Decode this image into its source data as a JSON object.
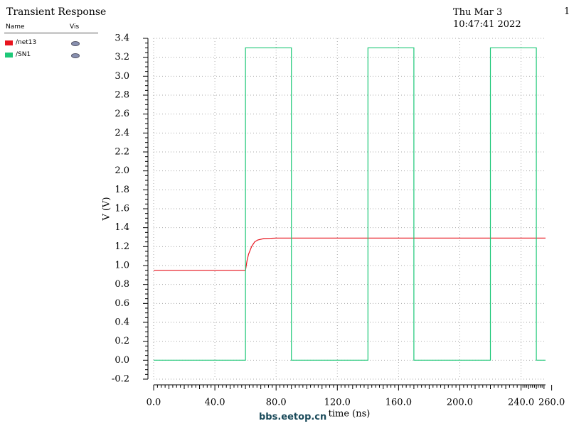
{
  "chart_data": {
    "type": "line",
    "title": "Transient Response",
    "timestamp": "Thu Mar 3 10:47:41 2022",
    "page": "1",
    "legend_headers": [
      "Name",
      "Vis"
    ],
    "xlabel": "time (ns)",
    "ylabel": "V (V)",
    "watermark": "bbs.eetop.cn",
    "grid": true,
    "xlim": [
      0,
      256
    ],
    "ylim": [
      -0.2,
      3.4
    ],
    "xticks": [
      {
        "value": 0,
        "label": "0.0"
      },
      {
        "value": 40,
        "label": "40.0"
      },
      {
        "value": 80,
        "label": "80.0"
      },
      {
        "value": 120,
        "label": "120.0"
      },
      {
        "value": 160,
        "label": "160.0"
      },
      {
        "value": 200,
        "label": "200.0"
      },
      {
        "value": 240,
        "label": "240.0"
      },
      {
        "value": 260,
        "label": "260.0"
      }
    ],
    "yticks": [
      -0.2,
      {
        "value": 0,
        "label": "0.0"
      },
      0.2,
      0.4,
      0.6,
      0.8,
      {
        "value": 1,
        "label": "1.0"
      },
      1.2,
      1.4,
      1.6,
      1.8,
      {
        "value": 2,
        "label": "2.0"
      },
      2.2,
      2.4,
      2.6,
      2.8,
      {
        "value": 3,
        "label": "3.0"
      },
      3.2,
      3.4
    ],
    "series": [
      {
        "name": "/net13",
        "color": "#e8141e",
        "x": [
          0,
          60,
          61,
          62,
          64,
          66,
          68,
          72,
          80,
          256
        ],
        "values": [
          0.95,
          0.95,
          1.05,
          1.12,
          1.2,
          1.25,
          1.27,
          1.285,
          1.29,
          1.29
        ]
      },
      {
        "name": "/SN1",
        "color": "#1ec878",
        "x": [
          0,
          60,
          60,
          90,
          90,
          140,
          140,
          170,
          170,
          220,
          220,
          250,
          250,
          256
        ],
        "values": [
          0,
          0,
          3.3,
          3.3,
          0,
          0,
          3.3,
          3.3,
          0,
          0,
          3.3,
          3.3,
          0,
          0
        ]
      }
    ]
  }
}
